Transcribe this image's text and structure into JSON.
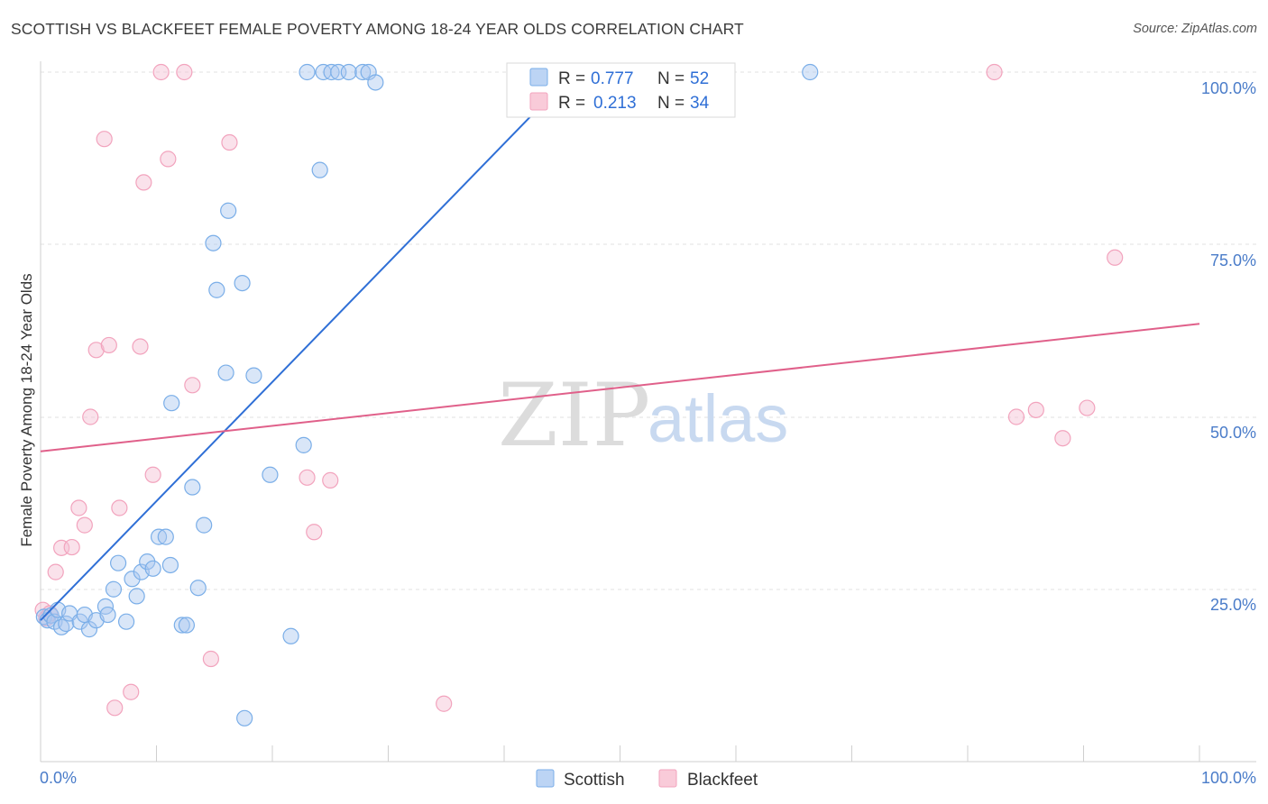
{
  "header": {
    "title": "SCOTTISH VS BLACKFEET FEMALE POVERTY AMONG 18-24 YEAR OLDS CORRELATION CHART",
    "source": "Source: ZipAtlas.com"
  },
  "watermark": {
    "zip": "ZIP",
    "atlas": "atlas"
  },
  "legend": {
    "scottish": {
      "r_label": "R =",
      "r_value": "0.777",
      "n_label": "N =",
      "n_value": "52"
    },
    "blackfeet": {
      "r_label": "R =",
      "r_value": "0.213",
      "n_label": "N =",
      "n_value": "34"
    }
  },
  "bottom_legend": {
    "scottish": "Scottish",
    "blackfeet": "Blackfeet"
  },
  "chart_data": {
    "type": "scatter",
    "title": "SCOTTISH VS BLACKFEET FEMALE POVERTY AMONG 18-24 YEAR OLDS CORRELATION CHART",
    "xlabel": "",
    "ylabel": "Female Poverty Among 18-24 Year Olds",
    "xlim": [
      0,
      100
    ],
    "ylim": [
      0,
      100
    ],
    "x_tick_labels": [
      "0.0%",
      "100.0%"
    ],
    "y_tick_labels": [
      "25.0%",
      "50.0%",
      "75.0%",
      "100.0%"
    ],
    "y_ticks": [
      25,
      50,
      75,
      100
    ],
    "grid": true,
    "legend_position": "top-center",
    "colors": {
      "scottish": "#7aaee8",
      "scottish_line": "#2f6fd6",
      "blackfeet": "#f2a3bd",
      "blackfeet_line": "#e0608a"
    },
    "series": [
      {
        "name": "Scottish",
        "R": 0.777,
        "N": 52,
        "trend": {
          "x": [
            0,
            46
          ],
          "y": [
            20.5,
            100
          ]
        },
        "points": [
          [
            0.3,
            21
          ],
          [
            0.6,
            20.5
          ],
          [
            0.9,
            21.2
          ],
          [
            1.2,
            20.3
          ],
          [
            1.5,
            22
          ],
          [
            1.8,
            19.5
          ],
          [
            2.2,
            20
          ],
          [
            2.5,
            21.5
          ],
          [
            3.4,
            20.3
          ],
          [
            3.8,
            21.3
          ],
          [
            4.2,
            19.2
          ],
          [
            4.8,
            20.5
          ],
          [
            5.6,
            22.5
          ],
          [
            5.8,
            21.3
          ],
          [
            6.3,
            25
          ],
          [
            6.7,
            28.8
          ],
          [
            7.4,
            20.3
          ],
          [
            7.9,
            26.5
          ],
          [
            8.3,
            24
          ],
          [
            8.7,
            27.5
          ],
          [
            9.2,
            29
          ],
          [
            9.7,
            28
          ],
          [
            10.2,
            32.6
          ],
          [
            10.8,
            32.6
          ],
          [
            11.2,
            28.5
          ],
          [
            12.2,
            19.8
          ],
          [
            12.6,
            19.8
          ],
          [
            11.3,
            52
          ],
          [
            13.1,
            39.8
          ],
          [
            13.6,
            25.2
          ],
          [
            14.1,
            34.3
          ],
          [
            14.9,
            75.2
          ],
          [
            15.2,
            68.4
          ],
          [
            16.2,
            79.9
          ],
          [
            16.0,
            56.4
          ],
          [
            17.4,
            69.4
          ],
          [
            18.4,
            56
          ],
          [
            17.6,
            6.3
          ],
          [
            19.8,
            41.6
          ],
          [
            21.6,
            18.2
          ],
          [
            22.7,
            45.9
          ],
          [
            24.1,
            85.8
          ],
          [
            23,
            100
          ],
          [
            24.4,
            100
          ],
          [
            25.1,
            100
          ],
          [
            25.7,
            100
          ],
          [
            26.6,
            100
          ],
          [
            27.8,
            100
          ],
          [
            28.3,
            100
          ],
          [
            28.9,
            98.5
          ],
          [
            58.9,
            100
          ],
          [
            66.4,
            100
          ]
        ]
      },
      {
        "name": "Blackfeet",
        "R": 0.213,
        "N": 34,
        "trend": {
          "x": [
            0,
            100
          ],
          "y": [
            45,
            63.5
          ]
        },
        "points": [
          [
            0.2,
            22
          ],
          [
            0.5,
            20.8
          ],
          [
            0.8,
            21.5
          ],
          [
            1.3,
            27.5
          ],
          [
            1.8,
            31
          ],
          [
            2.7,
            31.1
          ],
          [
            3.3,
            36.8
          ],
          [
            3.8,
            34.3
          ],
          [
            4.3,
            50
          ],
          [
            4.8,
            59.7
          ],
          [
            5.5,
            90.3
          ],
          [
            5.9,
            60.4
          ],
          [
            6.4,
            7.8
          ],
          [
            6.8,
            36.8
          ],
          [
            7.8,
            10.1
          ],
          [
            8.6,
            60.2
          ],
          [
            8.9,
            84
          ],
          [
            9.7,
            41.6
          ],
          [
            11,
            87.4
          ],
          [
            10.4,
            100
          ],
          [
            12.4,
            100
          ],
          [
            13.1,
            54.6
          ],
          [
            14.7,
            14.9
          ],
          [
            16.3,
            89.8
          ],
          [
            23,
            41.2
          ],
          [
            23.6,
            33.3
          ],
          [
            25.0,
            40.8
          ],
          [
            34.8,
            8.4
          ],
          [
            84.2,
            50
          ],
          [
            85.9,
            51
          ],
          [
            88.2,
            46.9
          ],
          [
            90.3,
            51.3
          ],
          [
            82.3,
            100
          ],
          [
            92.7,
            73.1
          ]
        ]
      }
    ]
  }
}
